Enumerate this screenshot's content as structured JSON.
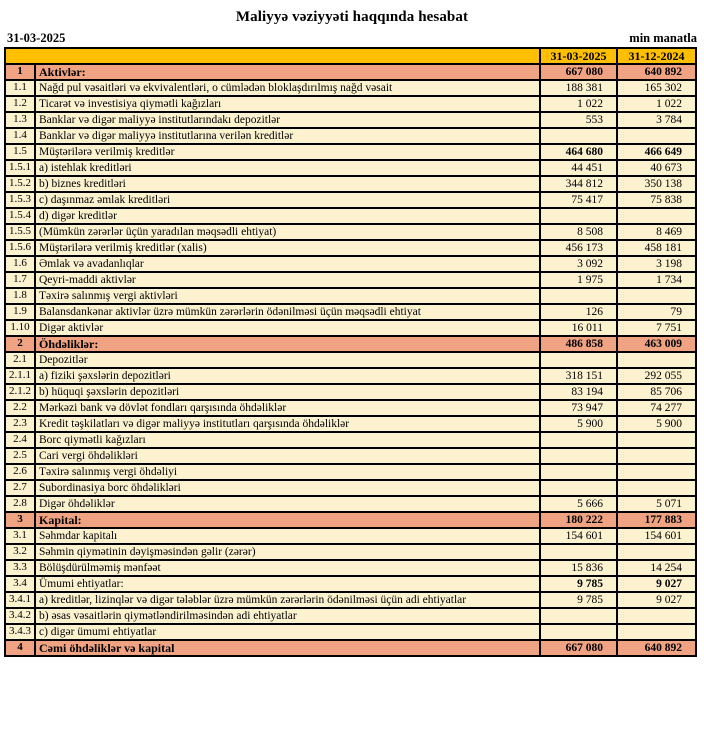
{
  "page": {
    "title": "Maliyyə vəziyyəti haqqında hesabat",
    "report_date": "31-03-2025",
    "unit_label": "min manatla"
  },
  "colors": {
    "header_fill": "#FEBF00",
    "section_fill": "#EFA383",
    "row_fill": "#FCF2D0",
    "border": "#000000"
  },
  "table": {
    "header": {
      "current": "31-03-2025",
      "previous": "31-12-2024"
    },
    "rows": [
      {
        "num": "1",
        "label": "Aktivlər:",
        "current": "667 080",
        "previous": "640 892",
        "type": "section"
      },
      {
        "num": "1.1",
        "label": "Nağd pul vəsaitləri və  ekvivalentləri, o cümlədən bloklaşdırılmış nağd vəsait",
        "current": "188 381",
        "previous": "165 302",
        "type": "item"
      },
      {
        "num": "1.2",
        "label": "Ticarət və investisiya qiymətli kağızları",
        "current": "1 022",
        "previous": "1 022",
        "type": "item"
      },
      {
        "num": "1.3",
        "label": "Banklar və digər maliyyə institutlarındakı depozitlər",
        "current": "553",
        "previous": "3 784",
        "type": "item"
      },
      {
        "num": "1.4",
        "label": "Banklar və digər maliyyə institutlarına verilən kreditlər",
        "current": "",
        "previous": "",
        "type": "item"
      },
      {
        "num": "1.5",
        "label": "Müştərilərə verilmiş kreditlər",
        "current": "464 680",
        "previous": "466 649",
        "type": "subtotal"
      },
      {
        "num": "1.5.1",
        "label": "a) istehlak kreditləri",
        "current": "44 451",
        "previous": "40 673",
        "type": "item"
      },
      {
        "num": "1.5.2",
        "label": "b) biznes kreditləri",
        "current": "344 812",
        "previous": "350 138",
        "type": "item"
      },
      {
        "num": "1.5.3",
        "label": "c) daşınmaz əmlak kreditləri",
        "current": "75 417",
        "previous": "75 838",
        "type": "item"
      },
      {
        "num": "1.5.4",
        "label": "d) digər kreditlər",
        "current": "",
        "previous": "",
        "type": "item"
      },
      {
        "num": "1.5.5",
        "label": "(Mümkün zərərlər üçün yaradılan məqsədli ehtiyat)",
        "current": "8 508",
        "previous": "8 469",
        "type": "item"
      },
      {
        "num": "1.5.6",
        "label": "Müştərilərə verilmiş kreditlər (xalis)",
        "current": "456 173",
        "previous": "458 181",
        "type": "item"
      },
      {
        "num": "1.6",
        "label": "Əmlak və avadanlıqlar",
        "current": "3 092",
        "previous": "3 198",
        "type": "item"
      },
      {
        "num": "1.7",
        "label": "Qeyri-maddi aktivlər",
        "current": "1 975",
        "previous": "1 734",
        "type": "item"
      },
      {
        "num": "1.8",
        "label": "Təxirə salınmış vergi aktivləri",
        "current": "",
        "previous": "",
        "type": "item"
      },
      {
        "num": "1.9",
        "label": "Balansdankənar aktivlər üzrə mümkün zərərlərin ödənilməsi üçün məqsədli ehtiyat",
        "current": "126",
        "previous": "79",
        "type": "item"
      },
      {
        "num": "1.10",
        "label": "Digər aktivlər",
        "current": "16 011",
        "previous": "7 751",
        "type": "item"
      },
      {
        "num": "2",
        "label": "Öhdəliklər:",
        "current": "486 858",
        "previous": "463 009",
        "type": "section"
      },
      {
        "num": "2.1",
        "label": "Depozitlər",
        "current": "",
        "previous": "",
        "type": "item"
      },
      {
        "num": "2.1.1",
        "label": "a) fiziki şəxslərin depozitləri",
        "current": "318 151",
        "previous": "292 055",
        "type": "item"
      },
      {
        "num": "2.1.2",
        "label": "b) hüquqi şəxslərin depozitləri",
        "current": "83 194",
        "previous": "85 706",
        "type": "item"
      },
      {
        "num": "2.2",
        "label": "Mərkəzi bank və dövlət fondları qarşısında öhdəliklər",
        "current": "73 947",
        "previous": "74 277",
        "type": "item"
      },
      {
        "num": "2.3",
        "label": "Kredit təşkilatları və digər maliyyə institutları qarşısında öhdəliklər",
        "current": "5 900",
        "previous": "5 900",
        "type": "item"
      },
      {
        "num": "2.4",
        "label": "Borc qiymətli kağızları",
        "current": "",
        "previous": "",
        "type": "item"
      },
      {
        "num": "2.5",
        "label": "Cari vergi öhdəlikləri",
        "current": "",
        "previous": "",
        "type": "item"
      },
      {
        "num": "2.6",
        "label": "Təxirə salınmış vergi öhdəliyi",
        "current": "",
        "previous": "",
        "type": "item"
      },
      {
        "num": "2.7",
        "label": "Subordinasiya borc öhdəlikləri",
        "current": "",
        "previous": "",
        "type": "item"
      },
      {
        "num": "2.8",
        "label": "Digər öhdəliklər",
        "current": "5 666",
        "previous": "5 071",
        "type": "item"
      },
      {
        "num": "3",
        "label": "Kapital:",
        "current": "180 222",
        "previous": "177 883",
        "type": "section"
      },
      {
        "num": "3.1",
        "label": "Səhmdar kapitalı",
        "current": "154 601",
        "previous": "154 601",
        "type": "item"
      },
      {
        "num": "3.2",
        "label": "Səhmin qiymətinin dəyişməsindən gəlir (zərər)",
        "current": "",
        "previous": "",
        "type": "item"
      },
      {
        "num": "3.3",
        "label": "Bölüşdürülməmiş mənfəət",
        "current": "15 836",
        "previous": "14 254",
        "type": "item"
      },
      {
        "num": "3.4",
        "label": "Ümumi ehtiyatlar:",
        "current": "9 785",
        "previous": "9 027",
        "type": "subtotal"
      },
      {
        "num": "3.4.1",
        "label": "a) kreditlər, lizinqlər və digər tələblər üzrə mümkün zərərlərin ödənilməsi üçün adi ehtiyatlar",
        "current": "9 785",
        "previous": "9 027",
        "type": "item"
      },
      {
        "num": "3.4.2",
        "label": "b) əsas vəsaitlərin qiymətləndirilməsindən adi ehtiyatlar",
        "current": "",
        "previous": "",
        "type": "item"
      },
      {
        "num": "3.4.3",
        "label": "c) digər ümumi ehtiyatlar",
        "current": "",
        "previous": "",
        "type": "item"
      },
      {
        "num": "4",
        "label": "Cəmi öhdəliklər və kapital",
        "current": "667 080",
        "previous": "640 892",
        "type": "section"
      }
    ]
  }
}
